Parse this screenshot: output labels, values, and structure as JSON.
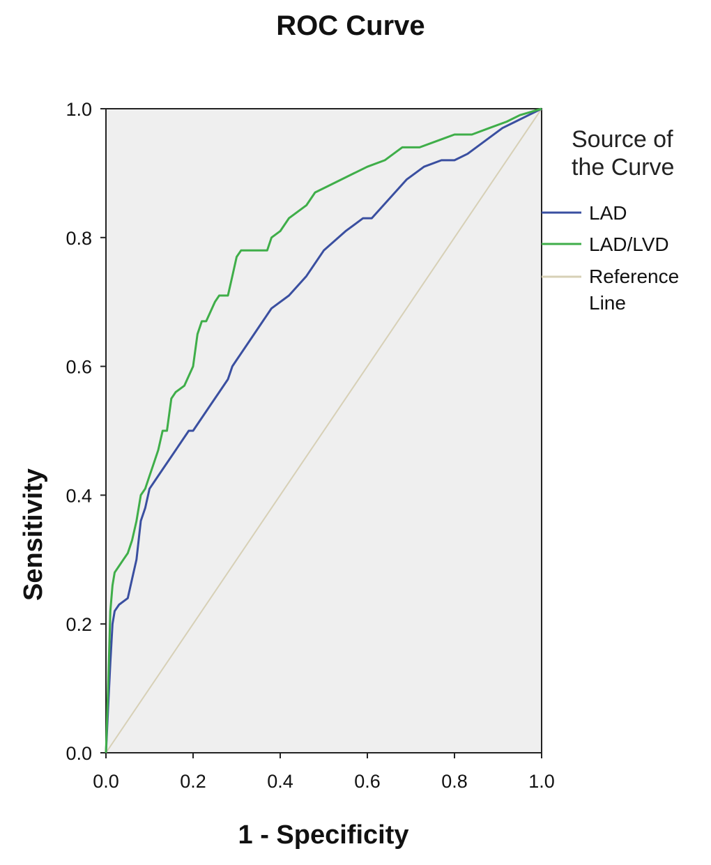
{
  "chart_data": {
    "type": "line",
    "title": "ROC Curve",
    "xlabel": "1 - Specificity",
    "ylabel": "Sensitivity",
    "xlim": [
      0,
      1
    ],
    "ylim": [
      0,
      1
    ],
    "x_ticks": [
      "0.0",
      "0.2",
      "0.4",
      "0.6",
      "0.8",
      "1.0"
    ],
    "y_ticks": [
      "0.0",
      "0.2",
      "0.4",
      "0.6",
      "0.8",
      "1.0"
    ],
    "grid": false,
    "background": "#efefef",
    "legend": {
      "title_lines": [
        "Source of",
        "the Curve"
      ],
      "placement": "right"
    },
    "series": [
      {
        "name": "LAD",
        "color": "#3a4fa0",
        "x": [
          0.0,
          0.005,
          0.01,
          0.015,
          0.02,
          0.03,
          0.05,
          0.06,
          0.07,
          0.08,
          0.09,
          0.1,
          0.11,
          0.13,
          0.15,
          0.17,
          0.19,
          0.2,
          0.22,
          0.24,
          0.26,
          0.28,
          0.29,
          0.3,
          0.33,
          0.36,
          0.38,
          0.42,
          0.46,
          0.5,
          0.55,
          0.59,
          0.61,
          0.65,
          0.69,
          0.73,
          0.77,
          0.8,
          0.83,
          0.87,
          0.91,
          0.94,
          0.97,
          1.0
        ],
        "y": [
          0.0,
          0.07,
          0.14,
          0.2,
          0.22,
          0.23,
          0.24,
          0.27,
          0.3,
          0.36,
          0.38,
          0.41,
          0.42,
          0.44,
          0.46,
          0.48,
          0.5,
          0.5,
          0.52,
          0.54,
          0.56,
          0.58,
          0.6,
          0.61,
          0.64,
          0.67,
          0.69,
          0.71,
          0.74,
          0.78,
          0.81,
          0.83,
          0.83,
          0.86,
          0.89,
          0.91,
          0.92,
          0.92,
          0.93,
          0.95,
          0.97,
          0.98,
          0.99,
          1.0
        ]
      },
      {
        "name": "LAD/LVD",
        "color": "#3fae49",
        "x": [
          0.0,
          0.005,
          0.01,
          0.015,
          0.02,
          0.03,
          0.04,
          0.05,
          0.06,
          0.07,
          0.08,
          0.09,
          0.1,
          0.11,
          0.12,
          0.13,
          0.14,
          0.15,
          0.16,
          0.18,
          0.2,
          0.21,
          0.22,
          0.23,
          0.25,
          0.26,
          0.28,
          0.29,
          0.3,
          0.31,
          0.33,
          0.35,
          0.37,
          0.38,
          0.4,
          0.42,
          0.44,
          0.46,
          0.48,
          0.51,
          0.54,
          0.57,
          0.6,
          0.64,
          0.68,
          0.72,
          0.76,
          0.8,
          0.84,
          0.88,
          0.92,
          0.95,
          1.0
        ],
        "y": [
          0.0,
          0.1,
          0.22,
          0.26,
          0.28,
          0.29,
          0.3,
          0.31,
          0.33,
          0.36,
          0.4,
          0.41,
          0.43,
          0.45,
          0.47,
          0.5,
          0.5,
          0.55,
          0.56,
          0.57,
          0.6,
          0.65,
          0.67,
          0.67,
          0.7,
          0.71,
          0.71,
          0.74,
          0.77,
          0.78,
          0.78,
          0.78,
          0.78,
          0.8,
          0.81,
          0.83,
          0.84,
          0.85,
          0.87,
          0.88,
          0.89,
          0.9,
          0.91,
          0.92,
          0.94,
          0.94,
          0.95,
          0.96,
          0.96,
          0.97,
          0.98,
          0.99,
          1.0
        ]
      },
      {
        "name": "Reference\nLine",
        "label_lines": [
          "Reference",
          "Line"
        ],
        "color": "#d7d0b6",
        "x": [
          0.0,
          1.0
        ],
        "y": [
          0.0,
          1.0
        ]
      }
    ]
  }
}
